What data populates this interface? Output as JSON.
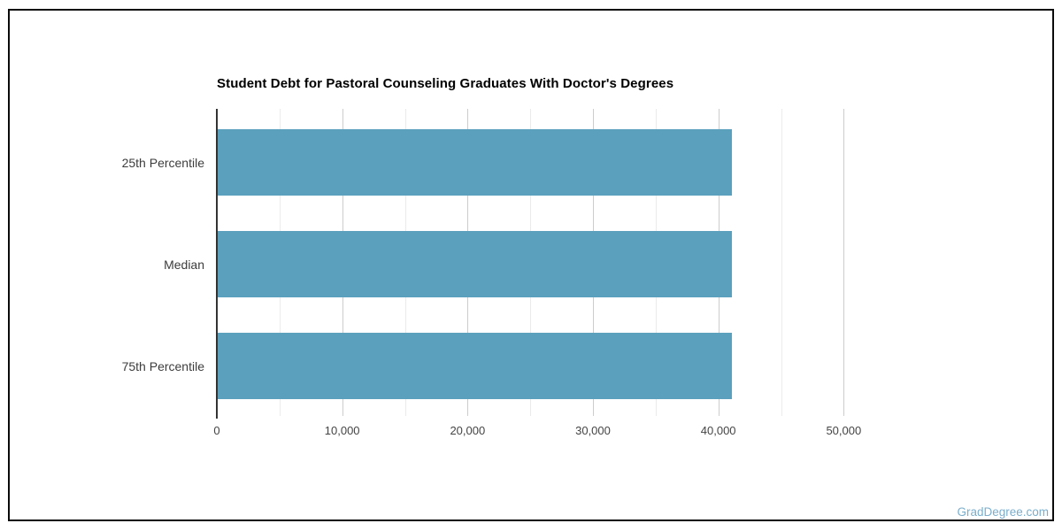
{
  "page": {
    "watermark": "GradDegree.com",
    "watermark_color": "#7aaecb",
    "frame_border_color": "#0b0b0b",
    "background_color": "#ffffff"
  },
  "chart_data": {
    "type": "bar",
    "orientation": "horizontal",
    "title": "Student Debt for Pastoral Counseling Graduates With Doctor's Degrees",
    "categories": [
      "25th Percentile",
      "Median",
      "75th Percentile"
    ],
    "values": [
      41000,
      41000,
      41000
    ],
    "xlabel": "",
    "ylabel": "",
    "legend": "none",
    "grid": true,
    "axis": {
      "min": 0,
      "max": 54000,
      "ticks": [
        {
          "value": 0,
          "label": "0",
          "major": true
        },
        {
          "value": 5000,
          "label": null,
          "major": false
        },
        {
          "value": 10000,
          "label": "10,000",
          "major": true
        },
        {
          "value": 15000,
          "label": null,
          "major": false
        },
        {
          "value": 20000,
          "label": "20,000",
          "major": true
        },
        {
          "value": 25000,
          "label": null,
          "major": false
        },
        {
          "value": 30000,
          "label": "30,000",
          "major": true
        },
        {
          "value": 35000,
          "label": null,
          "major": false
        },
        {
          "value": 40000,
          "label": "40,000",
          "major": true
        },
        {
          "value": 45000,
          "label": null,
          "major": false
        },
        {
          "value": 50000,
          "label": "50,000",
          "major": true
        }
      ]
    },
    "colors": {
      "bar": "#5ba0bd",
      "major_gridline": "#cccccc",
      "minor_gridline": "#ebebeb",
      "zero_line": "#333333",
      "tick_label": "#444444",
      "category_label": "#3c3c3c",
      "title": "#000000"
    }
  }
}
